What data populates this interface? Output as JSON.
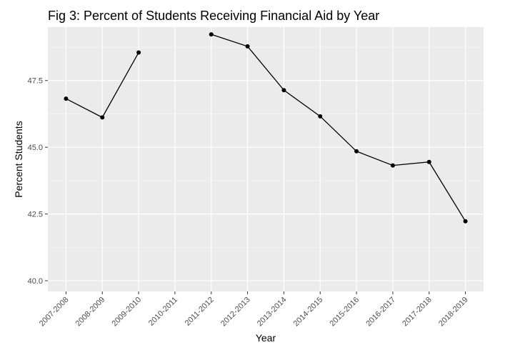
{
  "chart_data": {
    "type": "line",
    "title": "Fig 3: Percent of Students Receiving Financial Aid by Year",
    "xlabel": "Year",
    "ylabel": "Percent Students",
    "categories": [
      "2007-2008",
      "2008-2009",
      "2009-2010",
      "2010-2011",
      "2011-2012",
      "2012-2013",
      "2013-2014",
      "2014-2015",
      "2015-2016",
      "2016-2017",
      "2017-2018",
      "2018-2019"
    ],
    "values": [
      46.82,
      46.12,
      48.55,
      null,
      49.23,
      48.78,
      47.14,
      46.16,
      44.85,
      44.32,
      44.45,
      42.23
    ],
    "ylim": [
      39.6,
      49.5
    ],
    "yticks": [
      40.0,
      42.5,
      45.0,
      47.5
    ],
    "ytick_labels": [
      "40.0",
      "42.5",
      "45.0",
      "47.5"
    ],
    "grid": true,
    "colors": {
      "panel": "#ebebeb",
      "grid_major": "#ffffff",
      "line": "#000000",
      "tick_text": "#4d4d4d"
    }
  }
}
